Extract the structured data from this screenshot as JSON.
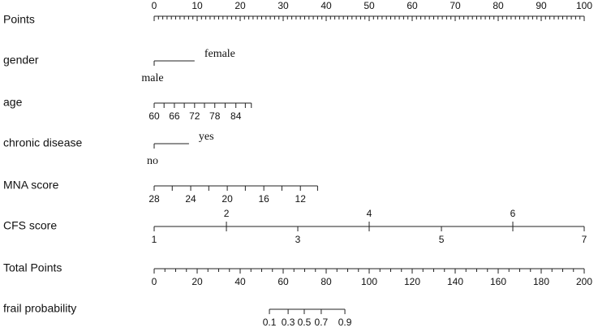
{
  "chart_data": {
    "type": "nomogram",
    "points_axis": {
      "name": "Points",
      "lim": [
        0,
        100
      ],
      "ticks": [
        0,
        10,
        20,
        30,
        40,
        50,
        60,
        70,
        80,
        90,
        100
      ]
    },
    "variables": [
      {
        "name": "gender",
        "ticks": [
          {
            "label": "male",
            "points": 0
          },
          {
            "label": "female",
            "points": 9.4
          }
        ]
      },
      {
        "name": "age",
        "ticks": [
          {
            "label": "60",
            "points": 0
          },
          {
            "label": null,
            "points": 2.3
          },
          {
            "label": "66",
            "points": 4.7
          },
          {
            "label": null,
            "points": 7.0
          },
          {
            "label": "72",
            "points": 9.4
          },
          {
            "label": null,
            "points": 11.7
          },
          {
            "label": "78",
            "points": 14.1
          },
          {
            "label": null,
            "points": 16.5
          },
          {
            "label": "84",
            "points": 19.0
          },
          {
            "label": null,
            "points": 21.2
          },
          {
            "label": null,
            "points": 22.6
          }
        ]
      },
      {
        "name": "chronic disease",
        "ticks": [
          {
            "label": "no",
            "points": 0
          },
          {
            "label": "yes",
            "points": 8.1
          }
        ]
      },
      {
        "name": "MNA score",
        "ticks": [
          {
            "label": "28",
            "points": 0
          },
          {
            "label": null,
            "points": 4.2
          },
          {
            "label": "24",
            "points": 8.5
          },
          {
            "label": null,
            "points": 12.7
          },
          {
            "label": "20",
            "points": 17.0
          },
          {
            "label": null,
            "points": 21.2
          },
          {
            "label": "16",
            "points": 25.5
          },
          {
            "label": null,
            "points": 29.7
          },
          {
            "label": "12",
            "points": 34.0
          },
          {
            "label": null,
            "points": 38.0
          }
        ]
      },
      {
        "name": "CFS score",
        "ticks": [
          {
            "label": "1",
            "points": 0
          },
          {
            "label": "2",
            "points": 16.8
          },
          {
            "label": "3",
            "points": 33.4
          },
          {
            "label": "4",
            "points": 50
          },
          {
            "label": "5",
            "points": 66.8
          },
          {
            "label": "6",
            "points": 83.4
          },
          {
            "label": "7",
            "points": 100
          }
        ]
      }
    ],
    "total_axis": {
      "name": "Total Points",
      "lim": [
        0,
        200
      ],
      "ticks": [
        0,
        20,
        40,
        60,
        80,
        100,
        120,
        140,
        160,
        180,
        200
      ]
    },
    "probability": {
      "name": "frail probability",
      "ticks": [
        {
          "label": "0.1",
          "total": 53.6
        },
        {
          "label": "0.3",
          "total": 62.3
        },
        {
          "label": "0.5",
          "total": 69.8
        },
        {
          "label": "0.7",
          "total": 77.7
        },
        {
          "label": "0.9",
          "total": 88.7
        }
      ]
    }
  }
}
